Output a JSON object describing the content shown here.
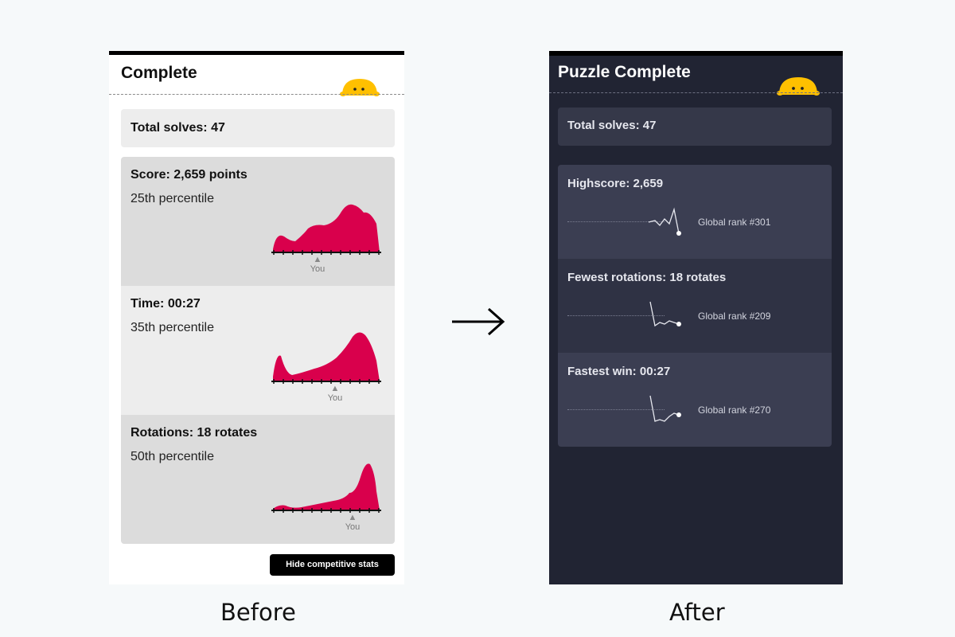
{
  "before": {
    "title": "Complete",
    "total_solves": "Total solves: 47",
    "stats": [
      {
        "label": "Score: 2,659 points",
        "percentile": "25th percentile",
        "marker": "You"
      },
      {
        "label": "Time: 00:27",
        "percentile": "35th percentile",
        "marker": "You"
      },
      {
        "label": "Rotations: 18 rotates",
        "percentile": "50th percentile",
        "marker": "You"
      }
    ],
    "hide_button": "Hide competitive stats"
  },
  "after": {
    "title": "Puzzle Complete",
    "total_solves": "Total solves: 47",
    "stats": [
      {
        "label": "Highscore: 2,659",
        "rank": "Global rank #301"
      },
      {
        "label": "Fewest rotations: 18 rotates",
        "rank": "Global rank #209"
      },
      {
        "label": "Fastest win: 00:27",
        "rank": "Global rank #270"
      }
    ]
  },
  "captions": {
    "before": "Before",
    "after": "After"
  },
  "icons": {
    "mascot": "mascot-icon",
    "arrow": "arrow-right-icon"
  },
  "colors": {
    "accent_chart": "#d9004c",
    "mascot": "#ffc000",
    "dark_bg": "#212433",
    "dark_card": "#3b3e52"
  }
}
